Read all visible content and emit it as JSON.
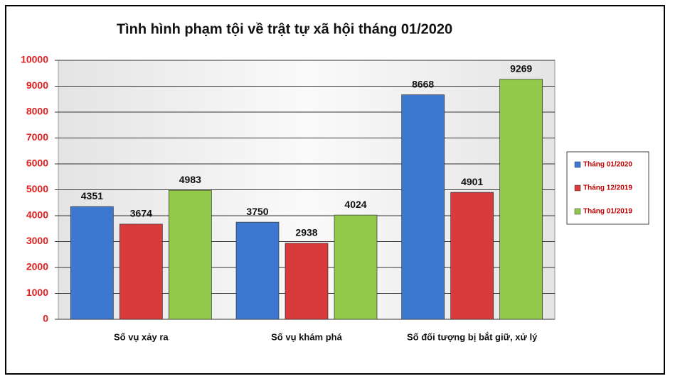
{
  "chart_data": {
    "type": "bar",
    "title": "Tình hình phạm tội về trật tự xã hội tháng 01/2020",
    "categories": [
      "Số vụ xảy ra",
      "Số vụ khám phá",
      "Số đối tượng bị bắt giữ, xử lý"
    ],
    "series": [
      {
        "name": "Tháng 01/2020",
        "color": "#3c78d0",
        "values": [
          4351,
          3750,
          8668
        ]
      },
      {
        "name": "Tháng 12/2019",
        "color": "#d93a3a",
        "values": [
          3674,
          2938,
          4901
        ]
      },
      {
        "name": "Tháng 01/2019",
        "color": "#92c94a",
        "values": [
          4983,
          4024,
          9269
        ]
      }
    ],
    "ylim": [
      0,
      10000
    ],
    "yticks": [
      0,
      1000,
      2000,
      3000,
      4000,
      5000,
      6000,
      7000,
      8000,
      9000,
      10000
    ],
    "grid": true,
    "legend": "right"
  }
}
